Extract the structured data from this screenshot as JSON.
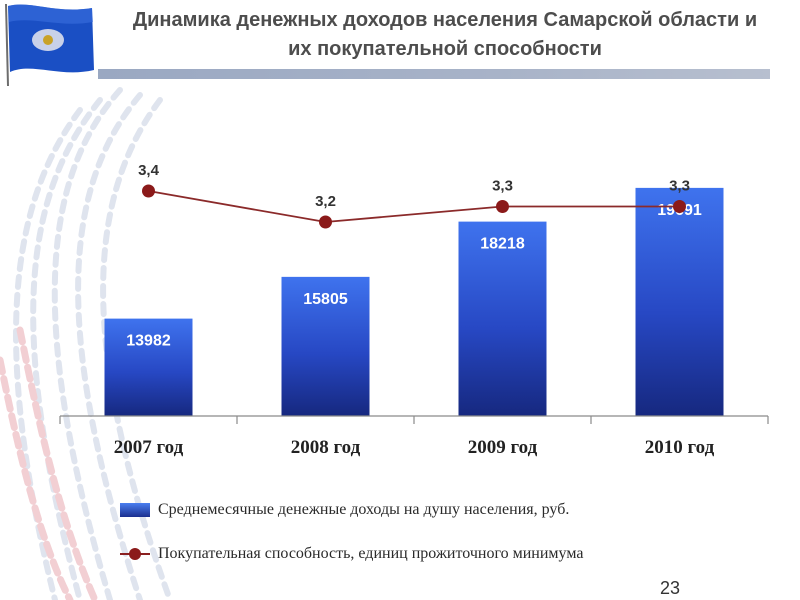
{
  "header": {
    "title_line1": "Динамика денежных доходов населения Самарской области и",
    "title_line2": "их покупательной способности"
  },
  "chart_data": {
    "type": "bar+line",
    "categories": [
      "2007 год",
      "2008 год",
      "2009 год",
      "2010 год"
    ],
    "series": [
      {
        "name": "Среднемесячные денежные доходы на душу населения, руб.",
        "kind": "bar",
        "values": [
          13982,
          15805,
          18218,
          19691
        ],
        "labels": [
          "13982",
          "15805",
          "18218",
          "19691"
        ],
        "color": "#1f3da8"
      },
      {
        "name": "Покупательная способность, единиц прожиточного минимума",
        "kind": "line",
        "values": [
          3.4,
          3.2,
          3.3,
          3.3
        ],
        "labels": [
          "3,4",
          "3,2",
          "3,3",
          "3,3"
        ],
        "color": "#8b1a1a"
      }
    ],
    "legend_position": "bottom",
    "grid": false
  },
  "legend": {
    "item1": "Среднемесячные денежные доходы на душу населения, руб.",
    "item2": "Покупательная способность, единиц прожиточного минимума"
  },
  "footer": {
    "page_number": "23"
  },
  "logo": {
    "icon": "flag-emblem-icon",
    "color": "#1a4fc4"
  }
}
